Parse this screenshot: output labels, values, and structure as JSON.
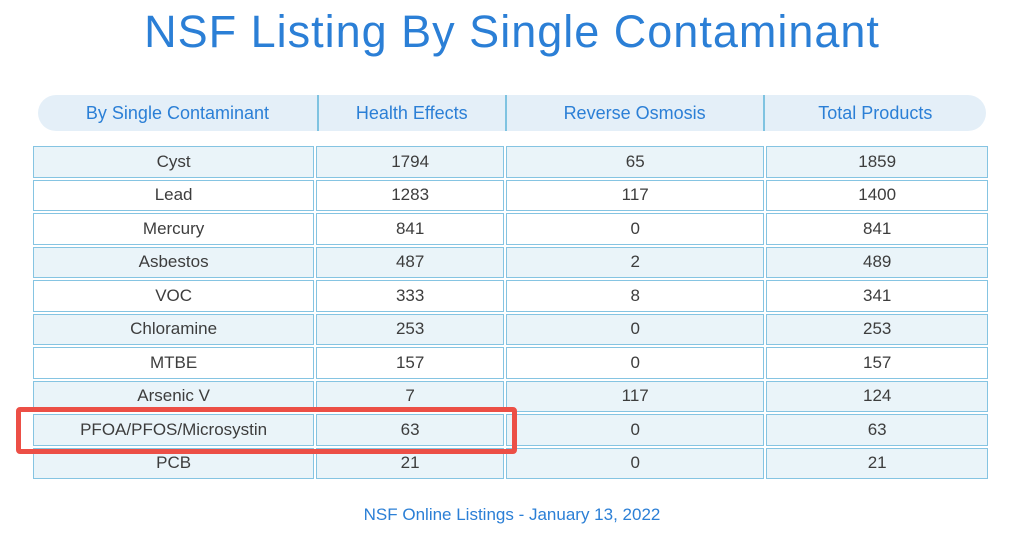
{
  "page": {
    "title": "NSF Listing By Single Contaminant",
    "footer": "NSF Online Listings - January 13, 2022"
  },
  "colors": {
    "accent_blue": "#2b7fd6",
    "table_border_blue": "#85c4e2",
    "header_pill_bg": "#e4eff8",
    "shaded_row_bg": "#eaf4f9",
    "highlight_red": "#ec4f46",
    "cell_text": "#3d3d3d"
  },
  "table": {
    "columns": [
      "By Single Contaminant",
      "Health Effects",
      "Reverse Osmosis",
      "Total Products"
    ],
    "rows": [
      {
        "contaminant": "Cyst",
        "health_effects": 1794,
        "reverse_osmosis": 65,
        "total_products": 1859,
        "shaded": true,
        "highlighted": false
      },
      {
        "contaminant": "Lead",
        "health_effects": 1283,
        "reverse_osmosis": 117,
        "total_products": 1400,
        "shaded": false,
        "highlighted": false
      },
      {
        "contaminant": "Mercury",
        "health_effects": 841,
        "reverse_osmosis": 0,
        "total_products": 841,
        "shaded": false,
        "highlighted": false
      },
      {
        "contaminant": "Asbestos",
        "health_effects": 487,
        "reverse_osmosis": 2,
        "total_products": 489,
        "shaded": true,
        "highlighted": false
      },
      {
        "contaminant": "VOC",
        "health_effects": 333,
        "reverse_osmosis": 8,
        "total_products": 341,
        "shaded": false,
        "highlighted": false
      },
      {
        "contaminant": "Chloramine",
        "health_effects": 253,
        "reverse_osmosis": 0,
        "total_products": 253,
        "shaded": true,
        "highlighted": false
      },
      {
        "contaminant": "MTBE",
        "health_effects": 157,
        "reverse_osmosis": 0,
        "total_products": 157,
        "shaded": false,
        "highlighted": false
      },
      {
        "contaminant": "Arsenic V",
        "health_effects": 7,
        "reverse_osmosis": 117,
        "total_products": 124,
        "shaded": true,
        "highlighted": false
      },
      {
        "contaminant": "PFOA/PFOS/Microsystin",
        "health_effects": 63,
        "reverse_osmosis": 0,
        "total_products": 63,
        "shaded": true,
        "highlighted": true
      },
      {
        "contaminant": "PCB",
        "health_effects": 21,
        "reverse_osmosis": 0,
        "total_products": 21,
        "shaded": true,
        "highlighted": false
      }
    ]
  },
  "chart_data": {
    "type": "table",
    "title": "NSF Listing By Single Contaminant",
    "columns": [
      "By Single Contaminant",
      "Health Effects",
      "Reverse Osmosis",
      "Total Products"
    ],
    "rows": [
      [
        "Cyst",
        1794,
        65,
        1859
      ],
      [
        "Lead",
        1283,
        117,
        1400
      ],
      [
        "Mercury",
        841,
        0,
        841
      ],
      [
        "Asbestos",
        487,
        2,
        489
      ],
      [
        "VOC",
        333,
        8,
        341
      ],
      [
        "Chloramine",
        253,
        0,
        253
      ],
      [
        "MTBE",
        157,
        0,
        157
      ],
      [
        "Arsenic V",
        7,
        117,
        124
      ],
      [
        "PFOA/PFOS/Microsystin",
        63,
        0,
        63
      ],
      [
        "PCB",
        21,
        0,
        21
      ]
    ],
    "caption": "NSF Online Listings - January 13, 2022",
    "annotations": [
      "red highlight box around PFOA/PFOS/Microsystin contaminant and Health Effects cells"
    ]
  }
}
